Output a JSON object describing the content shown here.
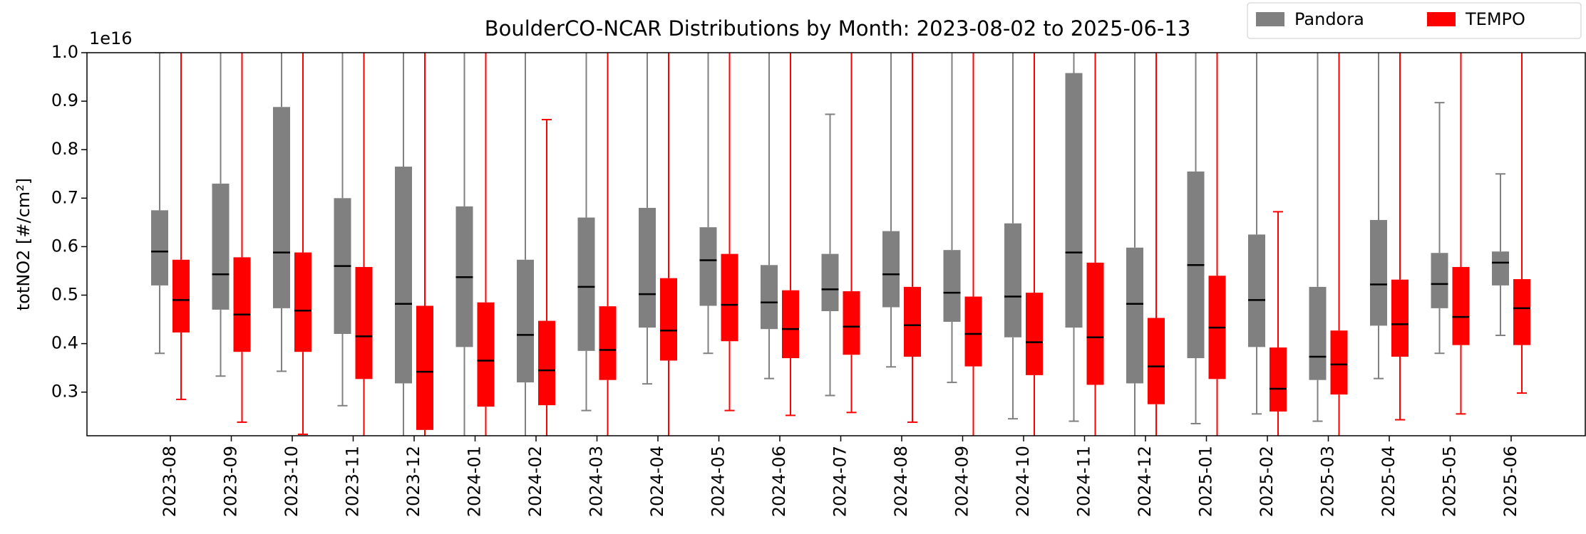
{
  "chart_data": {
    "type": "boxplot",
    "title": "BoulderCO-NCAR Distributions by Month: 2023-08-02 to 2025-06-13",
    "ylabel": "totNO2 [#/cm²]",
    "offset_label": "1e16",
    "ylim": [
      0.21,
      1.0
    ],
    "yticks": [
      0.3,
      0.4,
      0.5,
      0.6,
      0.7,
      0.8,
      0.9,
      {
        "value": 1.0,
        "label": "1.0"
      }
    ],
    "legend": "upper right",
    "categories": [
      "2023-08",
      "2023-09",
      "2023-10",
      "2023-11",
      "2023-12",
      "2024-01",
      "2024-02",
      "2024-03",
      "2024-04",
      "2024-05",
      "2024-06",
      "2024-07",
      "2024-08",
      "2024-09",
      "2024-10",
      "2024-11",
      "2024-12",
      "2025-01",
      "2025-02",
      "2025-03",
      "2025-04",
      "2025-05",
      "2025-06"
    ],
    "series": [
      {
        "name": "Pandora",
        "color": "#808080",
        "median_color": "#000000",
        "whishi": [
          1.0,
          1.05,
          1.05,
          1.05,
          1.05,
          1.05,
          1.05,
          1.05,
          1.05,
          1.05,
          1.05,
          0.873,
          1.05,
          1.05,
          1.05,
          1.05,
          1.05,
          1.05,
          1.05,
          1.05,
          1.05,
          0.897,
          0.75
        ],
        "q3": [
          0.675,
          0.73,
          0.888,
          0.7,
          0.765,
          0.683,
          0.573,
          0.66,
          0.68,
          0.64,
          0.562,
          0.585,
          0.632,
          0.593,
          0.648,
          0.958,
          0.598,
          0.755,
          0.625,
          0.517,
          0.655,
          0.587,
          0.59
        ],
        "median": [
          0.59,
          0.543,
          0.588,
          0.56,
          0.482,
          0.537,
          0.418,
          0.517,
          0.502,
          0.572,
          0.485,
          0.512,
          0.543,
          0.505,
          0.497,
          0.588,
          0.482,
          0.562,
          0.49,
          0.373,
          0.522,
          0.523,
          0.567
        ],
        "q1": [
          0.52,
          0.47,
          0.473,
          0.42,
          0.318,
          0.393,
          0.32,
          0.385,
          0.433,
          0.478,
          0.43,
          0.467,
          0.475,
          0.445,
          0.413,
          0.433,
          0.318,
          0.37,
          0.393,
          0.325,
          0.437,
          0.473,
          0.52
        ],
        "whislo": [
          0.38,
          0.333,
          0.343,
          0.272,
          0.19,
          0.19,
          0.19,
          0.262,
          0.317,
          0.38,
          0.328,
          0.293,
          0.352,
          0.32,
          0.245,
          0.24,
          0.19,
          0.235,
          0.255,
          0.24,
          0.328,
          0.38,
          0.417
        ]
      },
      {
        "name": "TEMPO",
        "color": "#ff0000",
        "median_color": "#000000",
        "whishi": [
          1.05,
          1.05,
          1.05,
          1.05,
          1.05,
          1.05,
          0.862,
          1.05,
          1.05,
          1.05,
          1.05,
          1.05,
          1.05,
          1.05,
          1.05,
          1.05,
          1.05,
          1.05,
          0.672,
          1.05,
          1.05,
          1.05,
          1.05
        ],
        "q3": [
          0.573,
          0.578,
          0.588,
          0.558,
          0.478,
          0.485,
          0.447,
          0.477,
          0.535,
          0.585,
          0.51,
          0.508,
          0.517,
          0.497,
          0.505,
          0.567,
          0.453,
          0.54,
          0.392,
          0.427,
          0.532,
          0.558,
          0.533
        ],
        "median": [
          0.49,
          0.46,
          0.468,
          0.415,
          0.342,
          0.365,
          0.345,
          0.387,
          0.427,
          0.48,
          0.43,
          0.435,
          0.438,
          0.42,
          0.403,
          0.413,
          0.353,
          0.433,
          0.307,
          0.357,
          0.44,
          0.455,
          0.473
        ],
        "q1": [
          0.423,
          0.383,
          0.383,
          0.327,
          0.222,
          0.27,
          0.273,
          0.325,
          0.365,
          0.405,
          0.37,
          0.377,
          0.373,
          0.353,
          0.335,
          0.315,
          0.275,
          0.327,
          0.26,
          0.295,
          0.373,
          0.397,
          0.397
        ],
        "whislo": [
          0.285,
          0.238,
          0.213,
          0.19,
          0.19,
          0.19,
          0.19,
          0.19,
          0.19,
          0.262,
          0.252,
          0.258,
          0.238,
          0.19,
          0.19,
          0.19,
          0.19,
          0.19,
          0.19,
          0.19,
          0.243,
          0.255,
          0.298
        ]
      }
    ]
  }
}
